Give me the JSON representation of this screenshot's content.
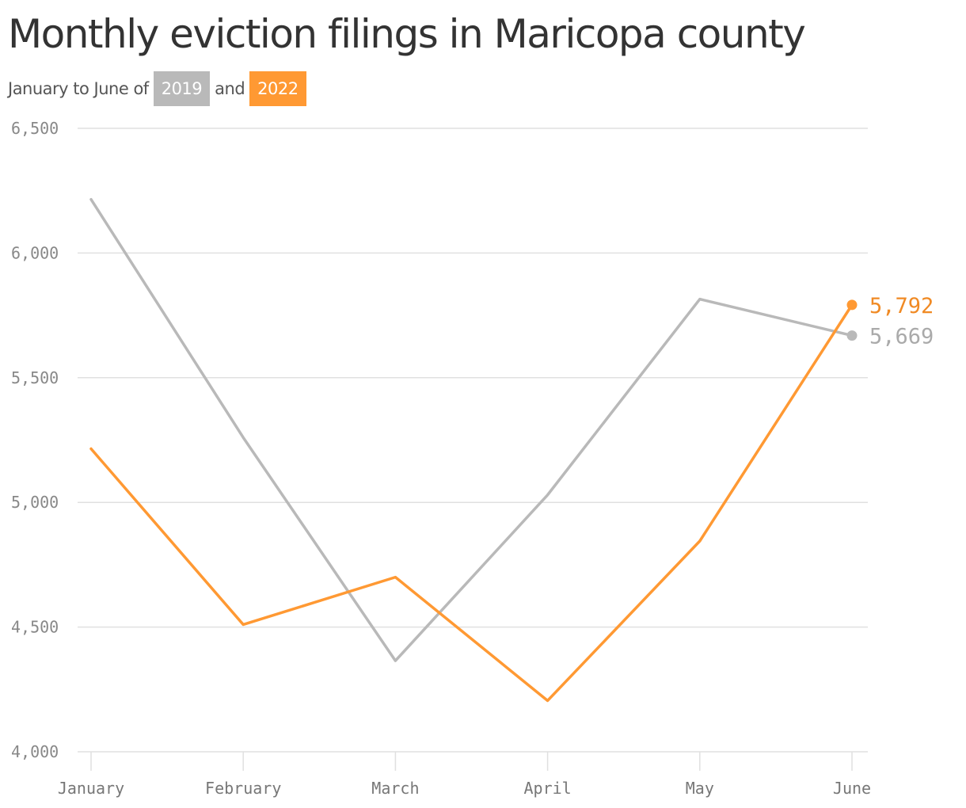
{
  "title": "Monthly eviction filings in Maricopa county",
  "subtitle": {
    "prefix": "January to June of",
    "year_a": "2019",
    "joiner": "and",
    "year_b": "2022"
  },
  "colors": {
    "series_2019": "#b9b9b9",
    "series_2022": "#ff9933",
    "end_label_2022": "#f08a24",
    "end_label_2019": "#aaaaaa",
    "gridline": "#e0e0e0",
    "axis_text": "#888888",
    "title_text": "#333333"
  },
  "chart_data": {
    "type": "line",
    "categories": [
      "January",
      "February",
      "March",
      "April",
      "May",
      "June"
    ],
    "ylim": [
      4000,
      6500
    ],
    "yticks": [
      4000,
      4500,
      5000,
      5500,
      6000,
      6500
    ],
    "ytick_labels": [
      "4,000",
      "4,500",
      "5,000",
      "5,500",
      "6,000",
      "6,500"
    ],
    "grid": true,
    "series": [
      {
        "name": "2019",
        "values": [
          6215,
          5260,
          4365,
          5030,
          5815,
          5669
        ],
        "end_label": "5,669"
      },
      {
        "name": "2022",
        "values": [
          5215,
          4510,
          4700,
          4205,
          4845,
          5792
        ],
        "end_label": "5,792"
      }
    ]
  }
}
